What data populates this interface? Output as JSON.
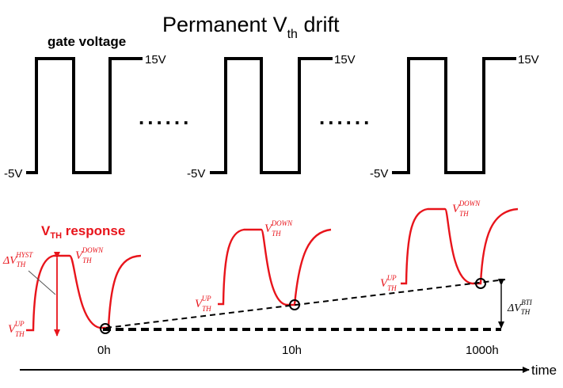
{
  "title": {
    "main": "Permanent V",
    "sub": "th",
    "tail": " drift"
  },
  "gate": {
    "label": "gate voltage",
    "high": "15V",
    "low": "-5V",
    "ellipsis": "......"
  },
  "response": {
    "label_main": "V",
    "label_sub": "TH",
    "label_tail": " response",
    "vth": "V",
    "vth_sub": "TH",
    "up": "UP",
    "down": "DOWN",
    "hyst": "HYST",
    "delta": "ΔV",
    "bti": "BTI"
  },
  "time_axis": {
    "label": "time",
    "ticks": [
      "0h",
      "10h",
      "1000h"
    ]
  },
  "colors": {
    "accent": "#e8141b",
    "ink": "#000000"
  }
}
